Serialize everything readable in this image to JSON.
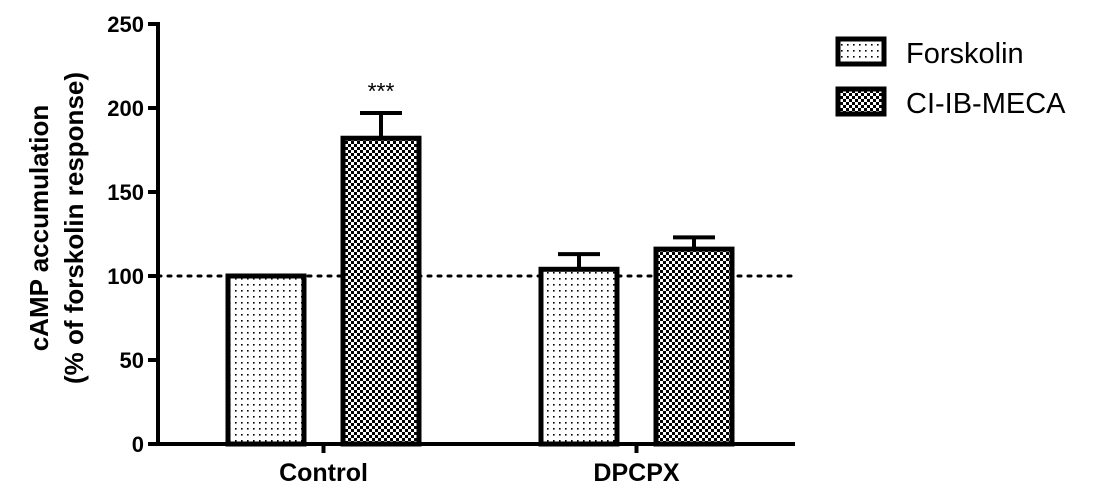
{
  "chart_data": {
    "type": "bar",
    "title": "",
    "xlabel": "",
    "ylabel": [
      "cAMP accumulation",
      "(% of forskolin response)"
    ],
    "ylim": [
      0,
      250
    ],
    "yticks": [
      0,
      50,
      100,
      150,
      200,
      250
    ],
    "categories": [
      "Control",
      "DPCPX"
    ],
    "series": [
      {
        "name": "Forskolin",
        "values": [
          100,
          104
        ],
        "errors": [
          0,
          9
        ],
        "pattern": "fine-dots"
      },
      {
        "name": "CI-IB-MECA",
        "values": [
          182,
          116
        ],
        "errors": [
          15,
          7
        ],
        "pattern": "checker"
      }
    ],
    "reference_line": {
      "y": 100,
      "style": "dotted"
    },
    "annotations": [
      {
        "category": "Control",
        "series": "CI-IB-MECA",
        "text": "***"
      }
    ],
    "legend_position": "top-right",
    "colors": {
      "axis": "#000000",
      "bar_fill": "#ffffff",
      "pattern": "#000000"
    }
  }
}
